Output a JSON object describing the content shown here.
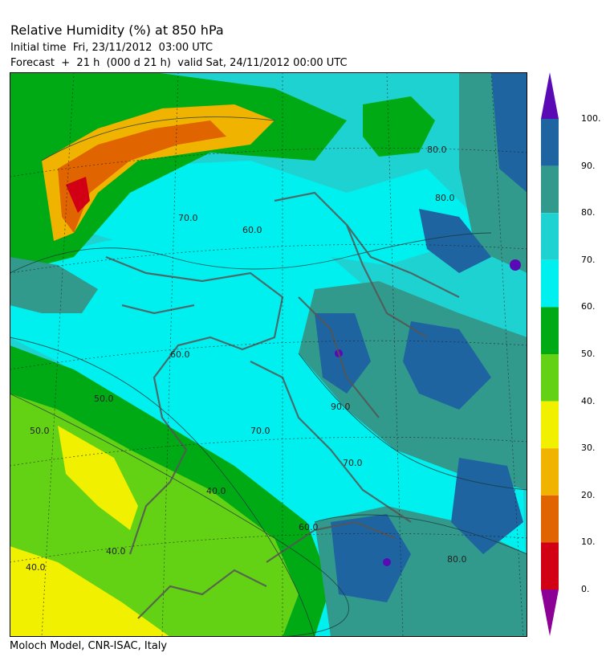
{
  "header": {
    "title": "Relative Humidity (%) at 850 hPa",
    "initial_time": "Initial time  Fri, 23/11/2012  03:00 UTC",
    "forecast": "Forecast  +  21 h  (000 d 21 h)  valid Sat, 24/11/2012 00:00 UTC"
  },
  "footer": {
    "credit": "Moloch Model, CNR-ISAC, Italy"
  },
  "legend": {
    "tick_labels": [
      "100.",
      "90.",
      "80.",
      "70.",
      "60.",
      "50.",
      "40.",
      "30.",
      "20.",
      "10.",
      "0."
    ],
    "bands": [
      {
        "from": 90,
        "to": 100,
        "color": "#1e64a0"
      },
      {
        "from": 80,
        "to": 90,
        "color": "#329a8c"
      },
      {
        "from": 70,
        "to": 80,
        "color": "#1ed2d2"
      },
      {
        "from": 60,
        "to": 70,
        "color": "#00f0f0"
      },
      {
        "from": 50,
        "to": 60,
        "color": "#00aa14"
      },
      {
        "from": 40,
        "to": 50,
        "color": "#64d214"
      },
      {
        "from": 30,
        "to": 40,
        "color": "#f0f000"
      },
      {
        "from": 20,
        "to": 30,
        "color": "#f0b400"
      },
      {
        "from": 10,
        "to": 20,
        "color": "#e06400"
      },
      {
        "from": 0,
        "to": 10,
        "color": "#d20014"
      }
    ],
    "over_color": "#5a0ab4",
    "under_color": "#8c0096"
  },
  "map_labels": [
    "70.0",
    "80.0",
    "60.0",
    "90.0",
    "50.0",
    "40.0",
    "80.0",
    "70.0",
    "60.0",
    "50.0",
    "40.0",
    "80.0",
    "70.0",
    "60.0",
    "40.0"
  ]
}
